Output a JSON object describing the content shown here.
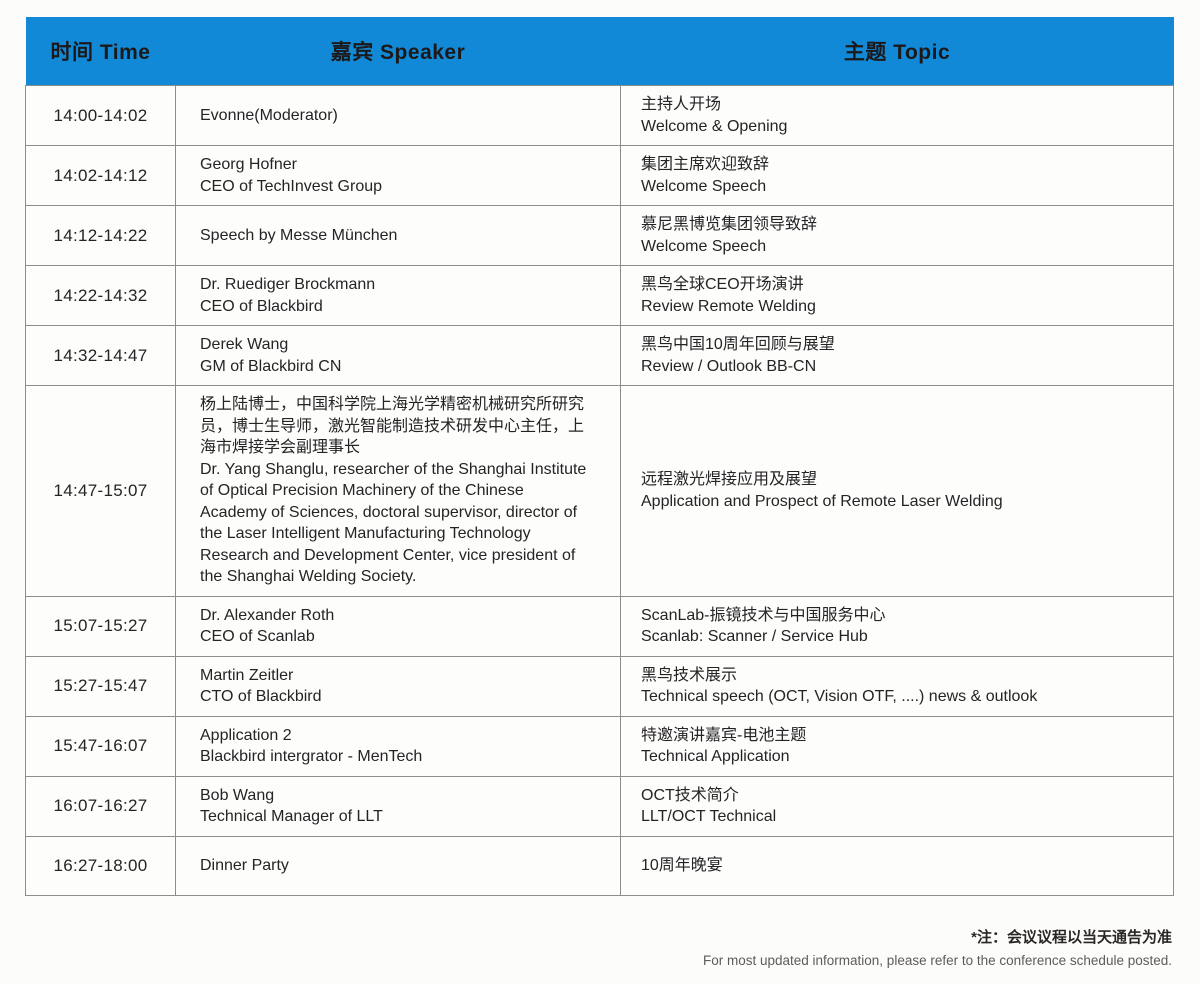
{
  "colors": {
    "header_bg": "#1289d6",
    "border": "#8d8d8d",
    "text": "#262324"
  },
  "table": {
    "headers": [
      "时间 Time",
      "嘉宾 Speaker",
      "主题 Topic"
    ],
    "rows": [
      {
        "time": "14:00-14:02",
        "speaker": [
          "Evonne(Moderator)"
        ],
        "topic": [
          "主持人开场",
          "Welcome & Opening"
        ]
      },
      {
        "time": "14:02-14:12",
        "speaker": [
          "Georg Hofner",
          "CEO of TechInvest Group"
        ],
        "topic": [
          "集团主席欢迎致辞",
          "Welcome Speech"
        ]
      },
      {
        "time": "14:12-14:22",
        "speaker": [
          "Speech by Messe München"
        ],
        "topic": [
          "慕尼黑博览集团领导致辞",
          "Welcome Speech"
        ]
      },
      {
        "time": "14:22-14:32",
        "speaker": [
          "Dr. Ruediger Brockmann",
          "CEO of Blackbird"
        ],
        "topic": [
          "黑鸟全球CEO开场演讲",
          "Review Remote Welding"
        ]
      },
      {
        "time": "14:32-14:47",
        "speaker": [
          "Derek Wang",
          "GM of Blackbird CN"
        ],
        "topic": [
          "黑鸟中国10周年回顾与展望",
          "Review / Outlook BB-CN"
        ]
      },
      {
        "time": "14:47-15:07",
        "speaker": [
          "杨上陆博士，中国科学院上海光学精密机械研究所研究员，博士生导师，激光智能制造技术研发中心主任，上海市焊接学会副理事长",
          "Dr. Yang Shanglu, researcher of the Shanghai Institute of Optical Precision Machinery of the Chinese Academy of Sciences, doctoral supervisor, director of the Laser Intelligent Manufacturing Technology Research and Development Center, vice president of the Shanghai Welding Society."
        ],
        "topic": [
          "远程激光焊接应用及展望",
          "Application and Prospect of Remote Laser Welding"
        ]
      },
      {
        "time": "15:07-15:27",
        "speaker": [
          "Dr. Alexander Roth",
          "CEO of Scanlab"
        ],
        "topic": [
          "ScanLab-振镜技术与中国服务中心",
          "Scanlab: Scanner / Service Hub"
        ]
      },
      {
        "time": "15:27-15:47",
        "speaker": [
          "Martin Zeitler",
          "CTO of Blackbird"
        ],
        "topic": [
          "黑鸟技术展示",
          "Technical speech (OCT, Vision OTF, ....) news & outlook"
        ]
      },
      {
        "time": "15:47-16:07",
        "speaker": [
          "Application 2",
          "Blackbird intergrator - MenTech"
        ],
        "topic": [
          "特邀演讲嘉宾-电池主题",
          "Technical Application"
        ]
      },
      {
        "time": "16:07-16:27",
        "speaker": [
          "Bob Wang",
          "Technical Manager of LLT"
        ],
        "topic": [
          "OCT技术简介",
          "LLT/OCT Technical"
        ]
      },
      {
        "time": "16:27-18:00",
        "speaker": [
          "Dinner Party"
        ],
        "topic": [
          "10周年晚宴"
        ]
      }
    ]
  },
  "footnote": {
    "zh": "*注：会议议程以当天通告为准",
    "en": "For most updated information, please refer to the conference schedule posted."
  }
}
